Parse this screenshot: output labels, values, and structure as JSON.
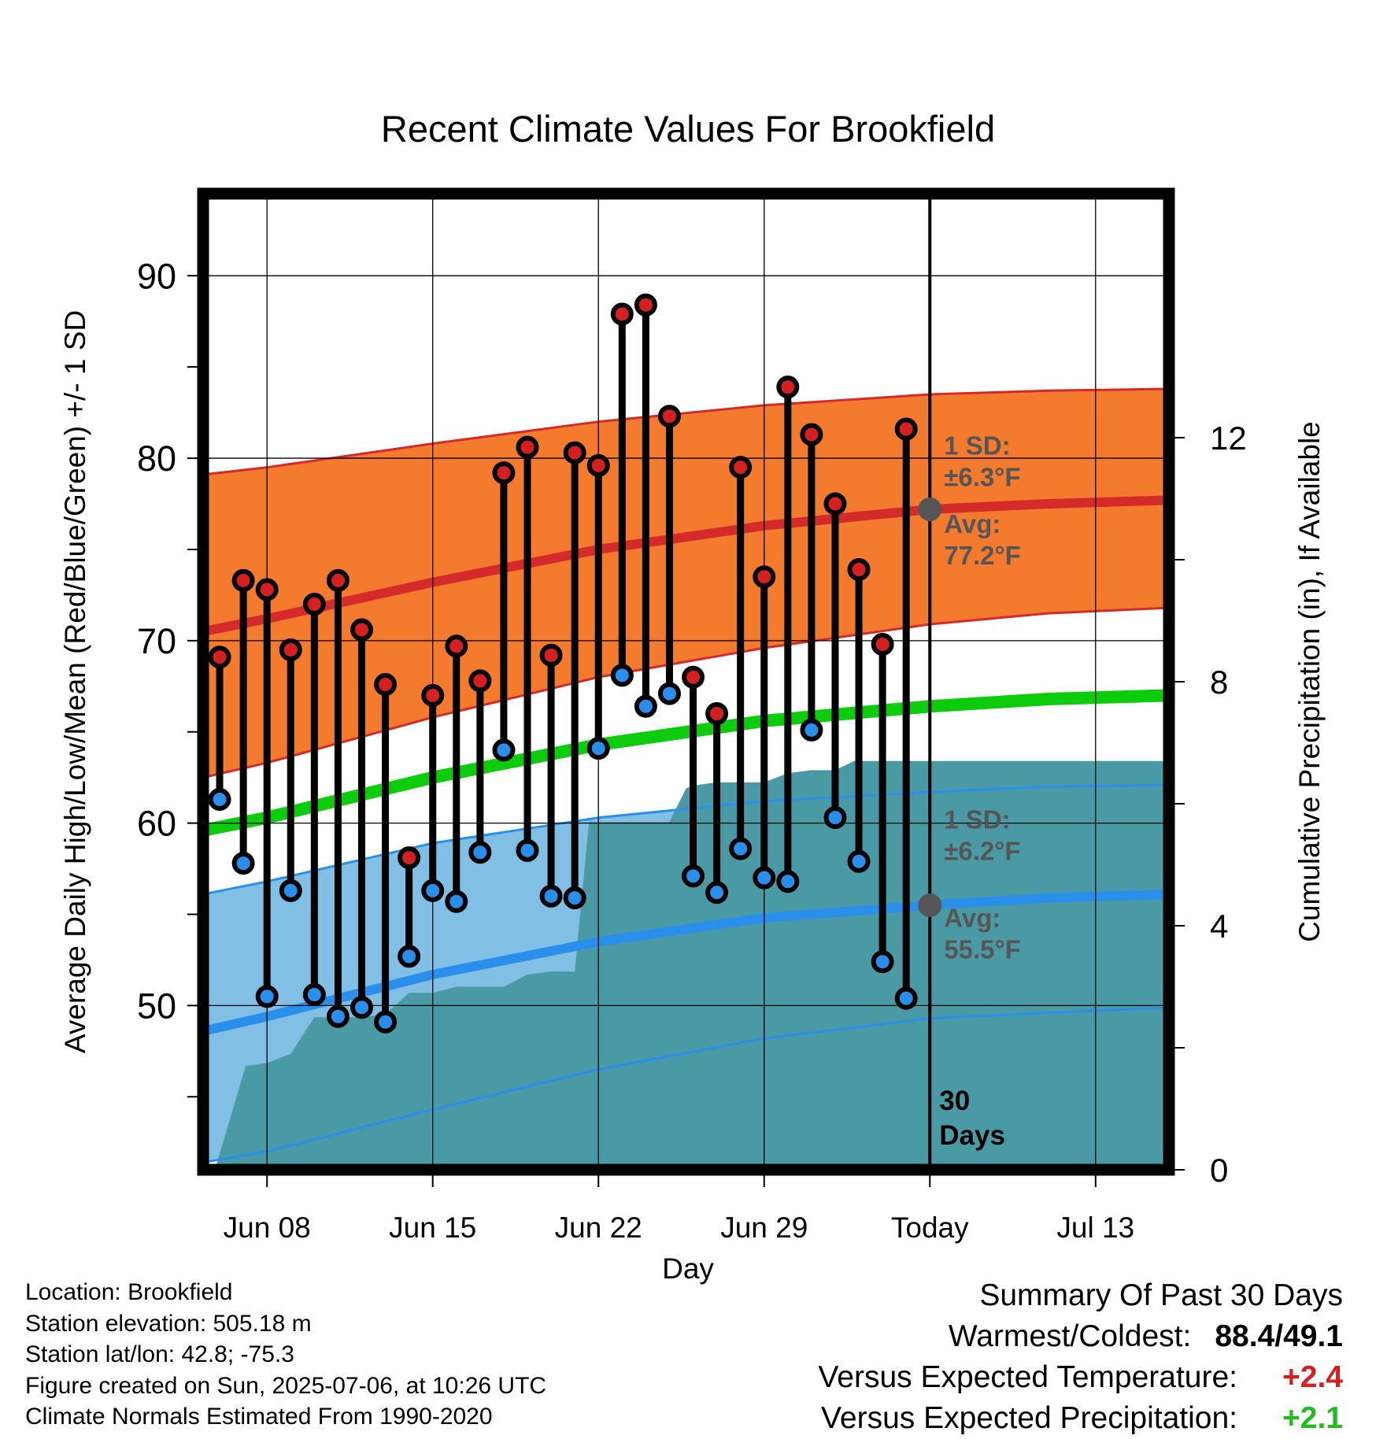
{
  "chart_data": {
    "type": "line",
    "title": "Recent Climate Values For Brookfield",
    "xlabel": "Day",
    "ylabel": "Average Daily High/Low/Mean (Red/Blue/Green) +/- 1 SD",
    "y2label": "Cumulative Precipitation (in), If Available",
    "ylim": [
      41,
      94.5
    ],
    "y2lim": [
      0,
      16
    ],
    "xlim": [
      -30.7,
      10.1
    ],
    "x_ticks": [
      {
        "day": -28,
        "label": "Jun 08"
      },
      {
        "day": -21,
        "label": "Jun 15"
      },
      {
        "day": -14,
        "label": "Jun 22"
      },
      {
        "day": -7,
        "label": "Jun 29"
      },
      {
        "day": 0,
        "label": "Today"
      },
      {
        "day": 7,
        "label": "Jul 13"
      }
    ],
    "y_ticks": [
      50,
      60,
      70,
      80,
      90
    ],
    "y2_ticks": [
      0,
      4,
      8,
      12
    ],
    "grid": true,
    "today_marker": {
      "day": 0,
      "label_line1": "30",
      "label_line2": "Days"
    },
    "normals": {
      "x": [
        -30.7,
        -28,
        -21,
        -14,
        -7,
        0,
        5,
        10.1
      ],
      "high_mean": [
        70.5,
        71.2,
        73.2,
        75.0,
        76.3,
        77.2,
        77.5,
        77.7
      ],
      "high_sd_upper": [
        79.1,
        79.5,
        80.8,
        82.0,
        82.9,
        83.5,
        83.7,
        83.8
      ],
      "high_sd_lower": [
        62.5,
        63.3,
        65.8,
        68.0,
        69.6,
        70.9,
        71.5,
        71.8
      ],
      "low_mean": [
        48.6,
        49.4,
        51.7,
        53.5,
        54.8,
        55.5,
        55.9,
        56.1
      ],
      "low_sd_upper": [
        56.1,
        56.8,
        58.9,
        60.3,
        61.2,
        61.7,
        62.0,
        62.1
      ],
      "low_sd_lower": [
        41.4,
        42.0,
        44.3,
        46.5,
        48.2,
        49.3,
        49.6,
        49.9
      ],
      "avg_mean": [
        59.6,
        60.3,
        62.5,
        64.3,
        65.6,
        66.4,
        66.8,
        67.0
      ]
    },
    "series": [
      {
        "name": "Daily High",
        "color": "#d42020",
        "x": [
          -30,
          -29,
          -28,
          -27,
          -26,
          -25,
          -24,
          -23,
          -22,
          -21,
          -20,
          -19,
          -18,
          -17,
          -16,
          -15,
          -14,
          -13,
          -12,
          -11,
          -10,
          -9,
          -8,
          -7,
          -6,
          -5,
          -4,
          -3,
          -2,
          -1
        ],
        "values": [
          69.1,
          73.3,
          72.8,
          69.5,
          72.0,
          73.3,
          70.6,
          67.6,
          58.1,
          67.0,
          69.7,
          67.8,
          79.2,
          80.6,
          69.2,
          80.3,
          79.6,
          87.9,
          88.4,
          82.3,
          68.0,
          66.0,
          79.5,
          73.5,
          83.9,
          81.3,
          77.5,
          73.9,
          69.8,
          81.6
        ]
      },
      {
        "name": "Daily Low",
        "color": "#2a8fea",
        "x": [
          -30,
          -29,
          -28,
          -27,
          -26,
          -25,
          -24,
          -23,
          -22,
          -21,
          -20,
          -19,
          -18,
          -17,
          -16,
          -15,
          -14,
          -13,
          -12,
          -11,
          -10,
          -9,
          -8,
          -7,
          -6,
          -5,
          -4,
          -3,
          -2,
          -1
        ],
        "values": [
          61.3,
          57.8,
          50.5,
          56.3,
          50.6,
          49.4,
          49.9,
          49.1,
          52.7,
          56.3,
          55.7,
          58.4,
          64.0,
          58.5,
          56.0,
          55.9,
          64.1,
          68.1,
          66.4,
          67.1,
          57.1,
          56.2,
          58.6,
          57.0,
          56.8,
          65.1,
          60.3,
          57.9,
          52.4,
          50.4
        ]
      },
      {
        "name": "Cumulative Precipitation",
        "color": "#4a9aa5",
        "axis": "y2",
        "x": [
          -30.7,
          -30.2,
          -28.9,
          -28.0,
          -27.0,
          -26.0,
          -24.0,
          -23.0,
          -22.0,
          -21.0,
          -20.0,
          -19.0,
          -18.0,
          -17.0,
          -16.0,
          -15.0,
          -14.4,
          -14.0,
          -13.0,
          -12.0,
          -11.0,
          -10.3,
          -10.0,
          -9.0,
          -8.0,
          -7.0,
          -6.0,
          -5.0,
          -4.0,
          -3.2,
          -3.0,
          -2.0,
          -1.0,
          0.0,
          5.0,
          10.1
        ],
        "values": [
          0.0,
          0.0,
          1.7,
          1.75,
          1.9,
          2.5,
          2.5,
          2.55,
          2.9,
          2.9,
          3.0,
          3.0,
          3.0,
          3.2,
          3.25,
          3.25,
          5.7,
          5.7,
          5.7,
          5.7,
          5.7,
          6.25,
          6.3,
          6.35,
          6.35,
          6.35,
          6.5,
          6.55,
          6.55,
          6.7,
          6.7,
          6.7,
          6.7,
          6.7,
          6.7,
          6.7
        ]
      }
    ],
    "annotations": {
      "high_sd": {
        "line1": "1 SD:",
        "line2": "±6.3°F"
      },
      "high_avg": {
        "line1": "Avg:",
        "line2": "77.2°F",
        "value": 77.2
      },
      "low_sd": {
        "line1": "1 SD:",
        "line2": "±6.2°F"
      },
      "low_avg": {
        "line1": "Avg:",
        "line2": "55.5°F",
        "value": 55.5
      }
    },
    "colors": {
      "high_band": "#f47a2e",
      "high_band_edge": "#d42a2a",
      "high_mean_line": "#d42a2a",
      "low_band": "#82bfe5",
      "low_band_edge": "#2a8fea",
      "low_mean_line": "#2a8fea",
      "mean_line": "#0ccc0c",
      "precip": "#4a9aa5",
      "annotation_text": "#555555"
    }
  },
  "footer": {
    "location": "Location: Brookfield",
    "elevation": "Station elevation: 505.18 m",
    "latlon": "Station lat/lon: 42.8; -75.3",
    "created": "Figure created on Sun, 2025-07-06, at 10:26 UTC",
    "normals": "Climate Normals Estimated From 1990-2020"
  },
  "summary": {
    "title": "Summary Of Past 30 Days",
    "warmest_coldest_label": "Warmest/Coldest:",
    "warmest_coldest_value": "88.4/49.1",
    "temp_label": "Versus Expected Temperature:",
    "temp_value": "+2.4",
    "temp_color": "#d42020",
    "precip_label": "Versus Expected Precipitation:",
    "precip_value": "+2.1",
    "precip_color": "#22bb22"
  }
}
